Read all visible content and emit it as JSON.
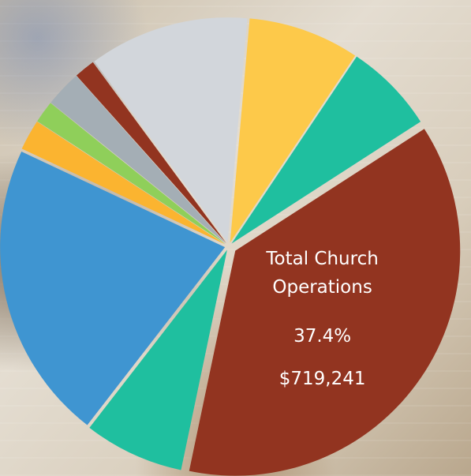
{
  "chart_data": {
    "type": "pie",
    "categories": [
      null,
      null,
      "Total Church Operations",
      null,
      null,
      null,
      null,
      null,
      null,
      null
    ],
    "values": [
      8,
      6.5,
      37.4,
      7.2,
      21.5,
      2.2,
      1.6,
      2.6,
      1.5,
      11.5
    ],
    "value_labels": [
      null,
      null,
      "37.4%",
      null,
      null,
      null,
      null,
      null,
      null,
      null
    ],
    "amount_labels": [
      null,
      null,
      "$719,241",
      null,
      null,
      null,
      null,
      null,
      null,
      null
    ],
    "colors": [
      "#fdc94a",
      "#1fbf9f",
      "#923420",
      "#1fbf9f",
      "#3f95d1",
      "#fbb430",
      "#8fcf5a",
      "#a4aeb5",
      "#923420",
      "#d2d6db"
    ]
  }
}
